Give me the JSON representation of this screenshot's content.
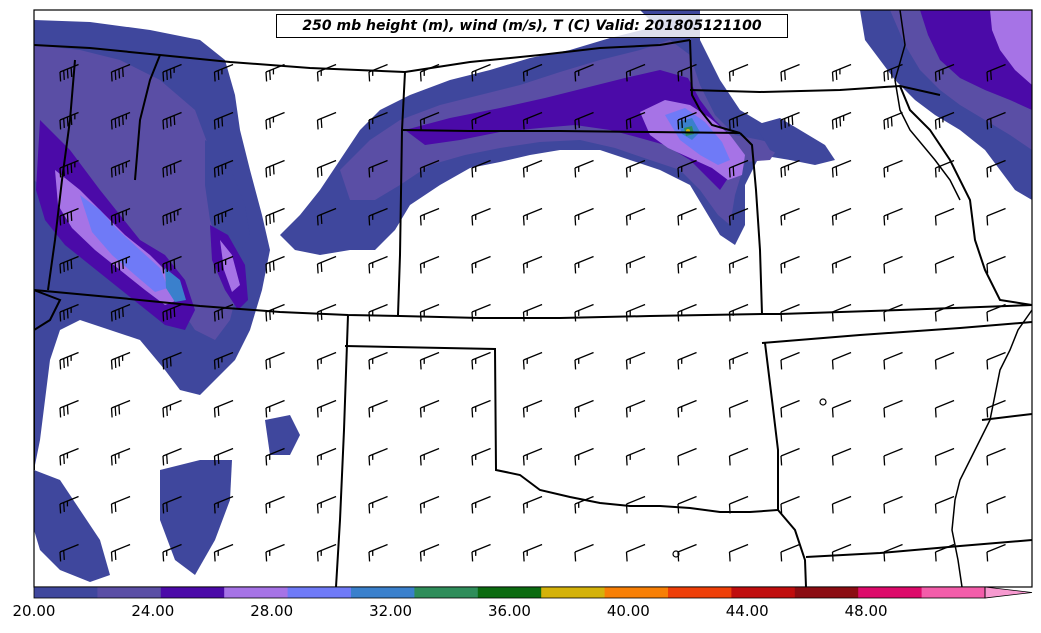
{
  "map": {
    "title": "250 mb height (m), wind (m/s), T (C) Valid: 201805121100",
    "fill_variable": "wind speed (m/s)",
    "barb_unit": "m/s",
    "colors": {
      "border": "#000000",
      "background": "#ffffff"
    }
  },
  "colorbar": {
    "tick_labels": [
      "20.00",
      "24.00",
      "28.00",
      "32.00",
      "36.00",
      "40.00",
      "44.00",
      "48.00"
    ],
    "min": 20,
    "max": 52,
    "interval": 2,
    "extend": "max",
    "colors": [
      "#3f479d",
      "#5a4ea5",
      "#4b0aa8",
      "#a673e6",
      "#6f7af7",
      "#3a80cc",
      "#2e8d5a",
      "#0b6b10",
      "#d4b20a",
      "#f77f05",
      "#ee3f08",
      "#c00d0d",
      "#8b0c12",
      "#dd0a6a",
      "#f35daa",
      "#f79ad0"
    ]
  },
  "wind_field": {
    "barb_icon": "wind-barb-icon",
    "rows": [
      {
        "speed_kt": [
          40,
          40,
          35,
          25,
          25,
          15,
          15,
          15,
          15,
          15,
          15,
          15,
          15,
          15,
          20,
          25,
          30,
          25,
          20,
          15
        ]
      },
      {
        "speed_kt": [
          45,
          45,
          40,
          30,
          25,
          20,
          15,
          15,
          15,
          15,
          20,
          20,
          25,
          30,
          40,
          35,
          30,
          25,
          20,
          20
        ]
      },
      {
        "speed_kt": [
          45,
          45,
          40,
          35,
          30,
          20,
          15,
          15,
          15,
          15,
          15,
          15,
          15,
          20,
          25,
          20,
          15,
          15,
          15,
          15
        ]
      },
      {
        "speed_kt": [
          40,
          45,
          45,
          35,
          30,
          20,
          15,
          15,
          15,
          15,
          15,
          15,
          15,
          15,
          15,
          15,
          15,
          10,
          10,
          10
        ]
      },
      {
        "speed_kt": [
          40,
          45,
          40,
          35,
          30,
          20,
          15,
          15,
          15,
          15,
          15,
          15,
          15,
          15,
          15,
          15,
          10,
          10,
          10,
          10
        ]
      },
      {
        "speed_kt": [
          35,
          40,
          40,
          30,
          25,
          20,
          15,
          15,
          15,
          15,
          15,
          15,
          15,
          15,
          10,
          10,
          10,
          10,
          10,
          10
        ]
      },
      {
        "speed_kt": [
          35,
          35,
          30,
          25,
          20,
          15,
          15,
          15,
          15,
          15,
          15,
          15,
          15,
          15,
          10,
          10,
          10,
          10,
          10,
          10
        ]
      },
      {
        "speed_kt": [
          30,
          30,
          25,
          20,
          15,
          15,
          15,
          15,
          15,
          15,
          15,
          15,
          15,
          10,
          10,
          10,
          10,
          10,
          10,
          10
        ]
      },
      {
        "speed_kt": [
          25,
          25,
          20,
          20,
          15,
          15,
          15,
          15,
          15,
          15,
          15,
          15,
          10,
          10,
          10,
          10,
          10,
          10,
          10,
          10
        ]
      },
      {
        "speed_kt": [
          25,
          20,
          20,
          15,
          15,
          15,
          15,
          15,
          15,
          15,
          15,
          10,
          10,
          10,
          10,
          10,
          10,
          10,
          10,
          10
        ]
      },
      {
        "speed_kt": [
          20,
          20,
          15,
          15,
          15,
          15,
          15,
          15,
          15,
          15,
          10,
          10,
          10,
          10,
          10,
          10,
          10,
          10,
          10,
          10
        ]
      }
    ]
  }
}
